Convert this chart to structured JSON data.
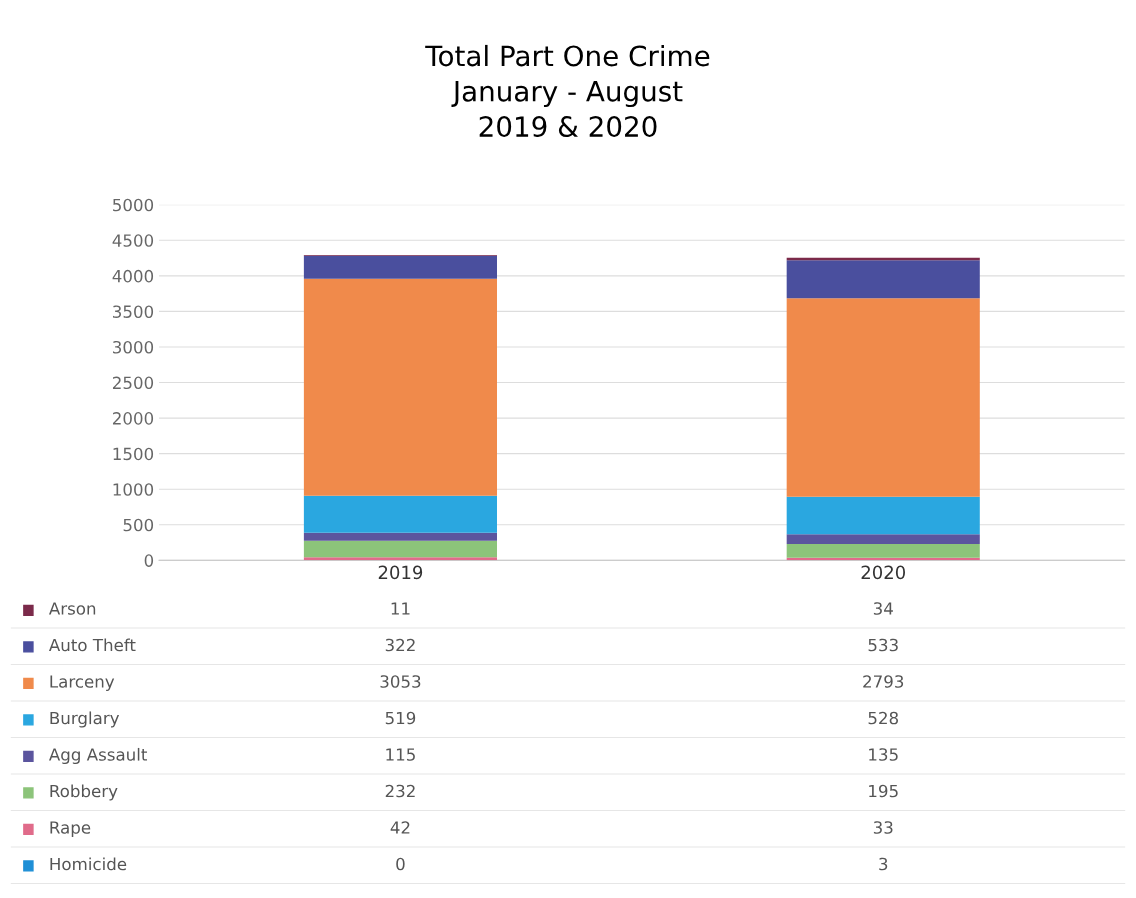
{
  "chart_data": {
    "type": "bar",
    "title": "Total Part One Crime\nJanuary - August\n2019 & 2020",
    "categories": [
      "2019",
      "2020"
    ],
    "stacked": true,
    "series": [
      {
        "name": "Homicide",
        "color": "#1e8fd6",
        "values": [
          0,
          3
        ]
      },
      {
        "name": "Rape",
        "color": "#e06b8a",
        "values": [
          42,
          33
        ]
      },
      {
        "name": "Robbery",
        "color": "#8cc47a",
        "values": [
          232,
          195
        ]
      },
      {
        "name": "Agg Assault",
        "color": "#5b559e",
        "values": [
          115,
          135
        ]
      },
      {
        "name": "Burglary",
        "color": "#2aa7e0",
        "values": [
          519,
          528
        ]
      },
      {
        "name": "Larceny",
        "color": "#f08a4b",
        "values": [
          3053,
          2793
        ]
      },
      {
        "name": "Auto Theft",
        "color": "#4a4f9e",
        "values": [
          322,
          533
        ]
      },
      {
        "name": "Arson",
        "color": "#7b2a4a",
        "values": [
          11,
          34
        ]
      }
    ],
    "ylim": [
      0,
      5000
    ],
    "yticks": [
      0,
      500,
      1000,
      1500,
      2000,
      2500,
      3000,
      3500,
      4000,
      4500,
      5000
    ],
    "grid": "y",
    "data_labels": true,
    "legend": "bottom left"
  }
}
